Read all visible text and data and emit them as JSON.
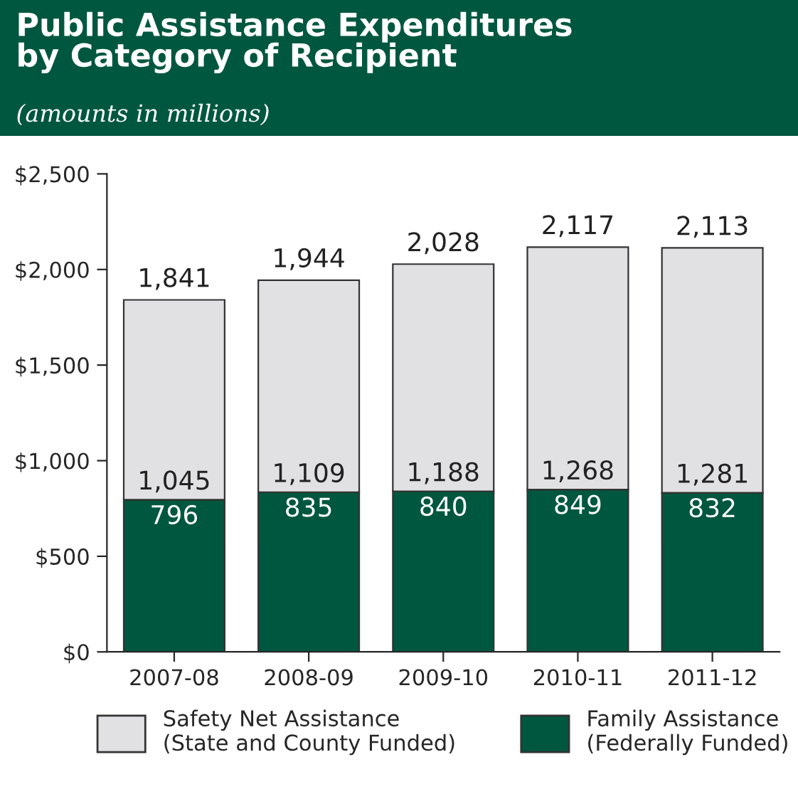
{
  "chart_data": {
    "type": "bar",
    "stacked": true,
    "title": "Public Assistance Expenditures\nby Category of Recipient",
    "subtitle": "(amounts in millions)",
    "categories": [
      "2007-08",
      "2008-09",
      "2009-10",
      "2010-11",
      "2011-12"
    ],
    "series": [
      {
        "name": "Family Assistance\n(Federally Funded)",
        "color": "#00573f",
        "values": [
          796,
          835,
          840,
          849,
          832
        ],
        "value_labels": [
          "796",
          "835",
          "840",
          "849",
          "832"
        ]
      },
      {
        "name": "Safety Net Assistance\n(State and County Funded)",
        "color": "#e1e1e3",
        "values": [
          1045,
          1109,
          1188,
          1268,
          1281
        ],
        "value_labels": [
          "1,045",
          "1,109",
          "1,188",
          "1,268",
          "1,281"
        ]
      }
    ],
    "totals": [
      "1,841",
      "1,944",
      "2,028",
      "2,117",
      "2,113"
    ],
    "ylim": [
      0,
      2500
    ],
    "yticks": [
      {
        "value": 0,
        "label": "$0"
      },
      {
        "value": 500,
        "label": "$500"
      },
      {
        "value": 1000,
        "label": "$1,000"
      },
      {
        "value": 1500,
        "label": "$1,500"
      },
      {
        "value": 2000,
        "label": "$2,000"
      },
      {
        "value": 2500,
        "label": "$2,500"
      }
    ],
    "grid": false,
    "legend": "bottom"
  }
}
